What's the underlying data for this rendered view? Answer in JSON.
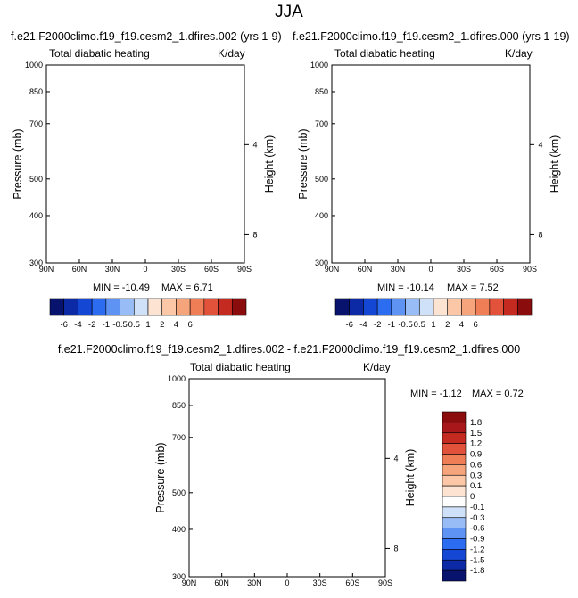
{
  "figure": {
    "title": "JJA"
  },
  "palette": {
    "neg": [
      "#08136d",
      "#0c2aa6",
      "#1448d4",
      "#2b6cf0",
      "#5e93f4",
      "#97bcf6",
      "#cfe1f9"
    ],
    "neutral": "#fdfdfd",
    "pos": [
      "#fde4d2",
      "#fbc7a6",
      "#f6a47b",
      "#ef7d55",
      "#e2513a",
      "#c42a1f",
      "#8a0c0c"
    ]
  },
  "chart_data": [
    {
      "id": "panel-a",
      "type": "heatmap",
      "title": "f.e21.F2000climo.f19_f19.cesm2_1.dfires.002 (yrs 1-9)",
      "subtitle_left": "Total diabatic heating",
      "subtitle_right": "K/day",
      "ylabel": "Pressure (mb)",
      "ylabel_right": "Height (km)",
      "xticks": [
        "90N",
        "60N",
        "30N",
        "0",
        "30S",
        "60S",
        "90S"
      ],
      "yticks": [
        "300",
        "400",
        "500",
        "700",
        "850",
        "1000"
      ],
      "yticks_right": [
        "8",
        "4"
      ],
      "xlim": [
        90,
        -90
      ],
      "ylim": [
        1000,
        300
      ],
      "y_scale": "log",
      "min_label": "MIN = -10.49",
      "max_label": "MAX =  6.71",
      "min": -10.49,
      "max": 6.71,
      "levels": [
        -6,
        -4,
        -2,
        -1,
        -0.5,
        0,
        0.5,
        1,
        2,
        4,
        6
      ]
    },
    {
      "id": "panel-b",
      "type": "heatmap",
      "title": "f.e21.F2000climo.f19_f19.cesm2_1.dfires.000 (yrs 1-19)",
      "subtitle_left": "Total diabatic heating",
      "subtitle_right": "K/day",
      "ylabel": "Pressure (mb)",
      "ylabel_right": "Height (km)",
      "xticks": [
        "90N",
        "60N",
        "30N",
        "0",
        "30S",
        "60S",
        "90S"
      ],
      "yticks": [
        "300",
        "400",
        "500",
        "700",
        "850",
        "1000"
      ],
      "yticks_right": [
        "8",
        "4"
      ],
      "xlim": [
        90,
        -90
      ],
      "ylim": [
        1000,
        300
      ],
      "y_scale": "log",
      "min_label": "MIN = -10.14",
      "max_label": "MAX =  7.52",
      "min": -10.14,
      "max": 7.52,
      "levels": [
        -6,
        -4,
        -2,
        -1,
        -0.5,
        0,
        0.5,
        1,
        2,
        4,
        6
      ]
    },
    {
      "id": "panel-diff",
      "type": "heatmap",
      "title": "f.e21.F2000climo.f19_f19.cesm2_1.dfires.002 - f.e21.F2000climo.f19_f19.cesm2_1.dfires.000",
      "subtitle_left": "Total diabatic heating",
      "subtitle_right": "K/day",
      "ylabel": "Pressure (mb)",
      "ylabel_right": "Height (km)",
      "xticks": [
        "90N",
        "60N",
        "30N",
        "0",
        "30S",
        "60S",
        "90S"
      ],
      "yticks": [
        "300",
        "400",
        "500",
        "700",
        "850",
        "1000"
      ],
      "yticks_right": [
        "8",
        "4"
      ],
      "xlim": [
        90,
        -90
      ],
      "ylim": [
        1000,
        300
      ],
      "y_scale": "log",
      "min_label": "MIN = -1.12",
      "max_label": "MAX =  0.72",
      "min": -1.12,
      "max": 0.72,
      "levels": [
        -1.8,
        -1.5,
        -1.2,
        -0.9,
        -0.6,
        -0.3,
        -0.1,
        0,
        0.1,
        0.3,
        0.6,
        0.9,
        1.2,
        1.5,
        1.8
      ]
    }
  ],
  "colorbars": {
    "top": {
      "labels": [
        "-6",
        "-4",
        "-2",
        "-1",
        "-0.5",
        "0.5",
        "1",
        "2",
        "4",
        "6"
      ]
    },
    "diff": {
      "labels": [
        "1.8",
        "1.5",
        "1.2",
        "0.9",
        "0.6",
        "0.3",
        "0.1",
        "0",
        "-0.1",
        "-0.3",
        "-0.6",
        "-0.9",
        "-1.2",
        "-1.5",
        "-1.8"
      ]
    }
  }
}
